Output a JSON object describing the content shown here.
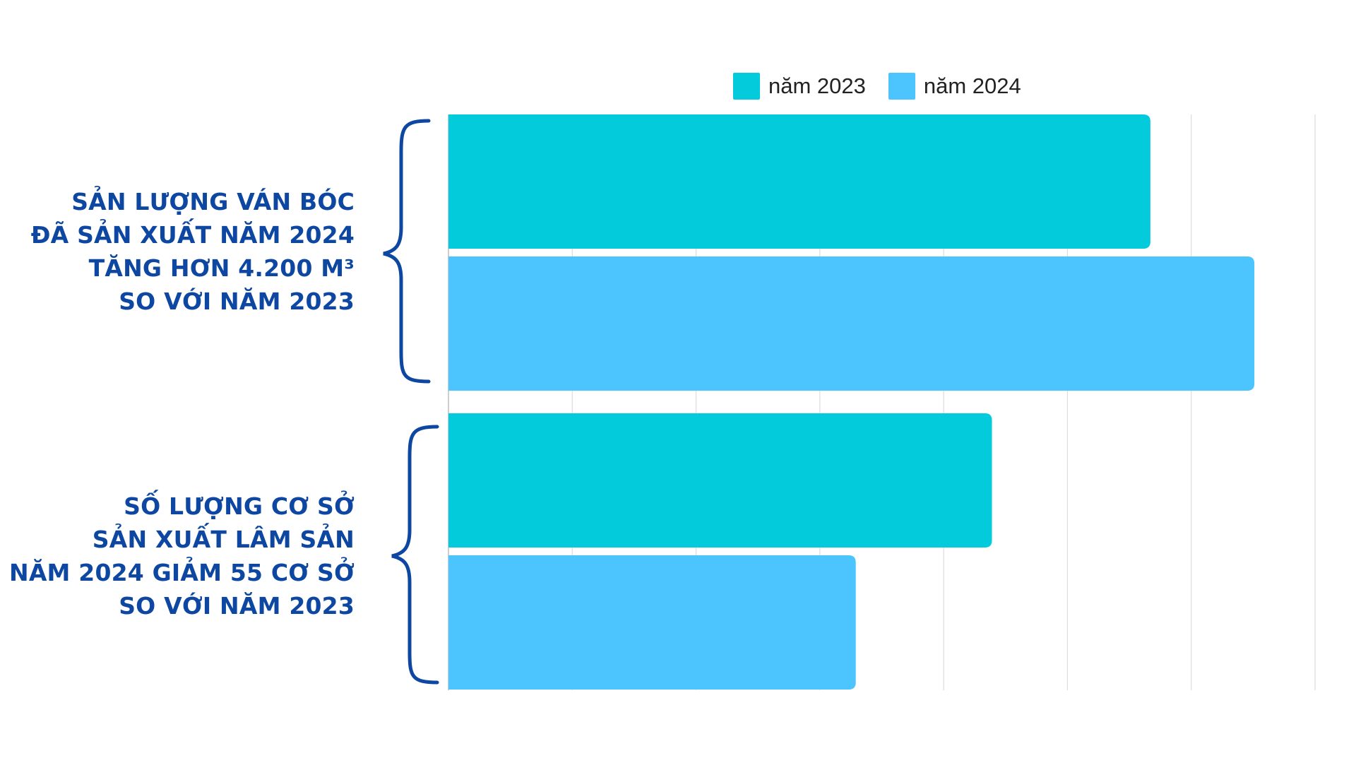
{
  "colors": {
    "series_2023": "#04CBDB",
    "series_2024": "#4CC4FE",
    "brace": "#0d47a1",
    "grid": "#dcdcdc",
    "label": "#0d47a1"
  },
  "chart_data": {
    "type": "bar",
    "orientation": "horizontal",
    "title": "",
    "xlabel": "",
    "ylabel": "",
    "grid": true,
    "legend_position": "top",
    "xlim": [
      0,
      7
    ],
    "categories": [
      "SẢN LƯỢNG VÁN BÓC ĐÃ SẢN XUẤT NĂM 2024 TĂNG HƠN 4.200 M³ SO VỚI NĂM 2023",
      "SỐ LƯỢNG CƠ SỞ SẢN XUẤT LÂM SẢN NĂM 2024 GIẢM 55 CƠ SỞ SO VỚI NĂM 2023"
    ],
    "series": [
      {
        "name": "năm 2023",
        "values": [
          5.67,
          4.39
        ]
      },
      {
        "name": "năm 2024",
        "values": [
          6.51,
          3.29
        ]
      }
    ]
  },
  "labels": {
    "group1": {
      "line1": "SẢN LƯỢNG VÁN BÓC",
      "line2": "ĐÃ SẢN XUẤT NĂM 2024",
      "line3": "TĂNG HƠN 4.200 M³",
      "line4": "SO VỚI NĂM 2023"
    },
    "group2": {
      "line1": "SỐ LƯỢNG CƠ SỞ",
      "line2": "SẢN XUẤT LÂM SẢN",
      "line3": "NĂM 2024 GIẢM 55 CƠ SỞ",
      "line4": "SO VỚI NĂM 2023"
    }
  },
  "legend": {
    "item1": "năm 2023",
    "item2": "năm 2024"
  }
}
